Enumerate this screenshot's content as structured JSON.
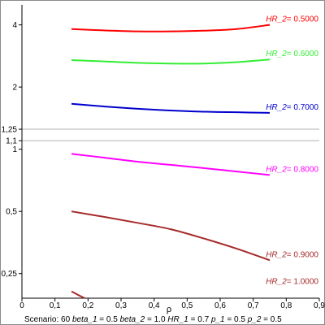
{
  "chart_data": {
    "type": "line",
    "xlabel": "ρ",
    "xlim": [
      0,
      0.9
    ],
    "x_scale": "linear",
    "y_scale": "log",
    "ylim": [
      0.19,
      5.0
    ],
    "xticks": [
      {
        "value": 0,
        "label": "0"
      },
      {
        "value": 0.1,
        "label": "0,1"
      },
      {
        "value": 0.2,
        "label": "0,2"
      },
      {
        "value": 0.3,
        "label": "0,3"
      },
      {
        "value": 0.4,
        "label": "0,4"
      },
      {
        "value": 0.5,
        "label": "0,5"
      },
      {
        "value": 0.6,
        "label": "0,6"
      },
      {
        "value": 0.7,
        "label": "0,7"
      },
      {
        "value": 0.8,
        "label": "0,8"
      },
      {
        "value": 0.9,
        "label": "0,9"
      }
    ],
    "yticks": [
      {
        "value": 0.25,
        "label": "0,25"
      },
      {
        "value": 0.5,
        "label": "0,5"
      },
      {
        "value": 1.0,
        "label": "1"
      },
      {
        "value": 1.1,
        "label": "1,1"
      },
      {
        "value": 1.25,
        "label": "1,25"
      },
      {
        "value": 2.0,
        "label": "2"
      },
      {
        "value": 4.0,
        "label": "4"
      }
    ],
    "reference_lines": [
      1.1,
      1.25
    ],
    "series": [
      {
        "name": "HR_2",
        "value_label": "0.5000",
        "color": "#ff0000",
        "x": [
          0.15,
          0.25,
          0.35,
          0.45,
          0.55,
          0.65,
          0.75
        ],
        "y": [
          3.82,
          3.76,
          3.72,
          3.72,
          3.75,
          3.82,
          4.0
        ]
      },
      {
        "name": "HR_2",
        "value_label": "0.6000",
        "color": "#33ee33",
        "x": [
          0.15,
          0.25,
          0.35,
          0.45,
          0.55,
          0.65,
          0.75
        ],
        "y": [
          2.7,
          2.66,
          2.62,
          2.6,
          2.6,
          2.64,
          2.72
        ]
      },
      {
        "name": "HR_2",
        "value_label": "0.7000",
        "color": "#0000cc",
        "x": [
          0.15,
          0.25,
          0.35,
          0.45,
          0.55,
          0.65,
          0.75
        ],
        "y": [
          1.66,
          1.61,
          1.57,
          1.54,
          1.52,
          1.51,
          1.5
        ]
      },
      {
        "name": "HR_2",
        "value_label": "0.8000",
        "color": "#ff00ff",
        "x": [
          0.15,
          0.25,
          0.35,
          0.45,
          0.55,
          0.65,
          0.75
        ],
        "y": [
          0.95,
          0.91,
          0.87,
          0.84,
          0.81,
          0.78,
          0.75
        ]
      },
      {
        "name": "HR_2",
        "value_label": "0.9000",
        "color": "#a52a2a",
        "x": [
          0.15,
          0.25,
          0.35,
          0.45,
          0.55,
          0.65,
          0.75
        ],
        "y": [
          0.5,
          0.47,
          0.44,
          0.41,
          0.37,
          0.33,
          0.29
        ]
      },
      {
        "name": "HR_2",
        "value_label": "1.0000",
        "color": "#a52a2a",
        "x": [
          0.15,
          0.17,
          0.19
        ],
        "y": [
          0.205,
          0.197,
          0.19
        ]
      }
    ],
    "grid": false,
    "legend": "inline-right"
  },
  "footer": {
    "scenario_label": "Scenario:",
    "scenario_value": "60",
    "params": [
      {
        "name": "beta_1",
        "value": "0.5"
      },
      {
        "name": "beta_2",
        "value": "1.0"
      },
      {
        "name": "HR_1",
        "value": "0.7"
      },
      {
        "name": "p_1",
        "value": "0.5"
      },
      {
        "name": "p_2",
        "value": "0.5"
      }
    ]
  }
}
